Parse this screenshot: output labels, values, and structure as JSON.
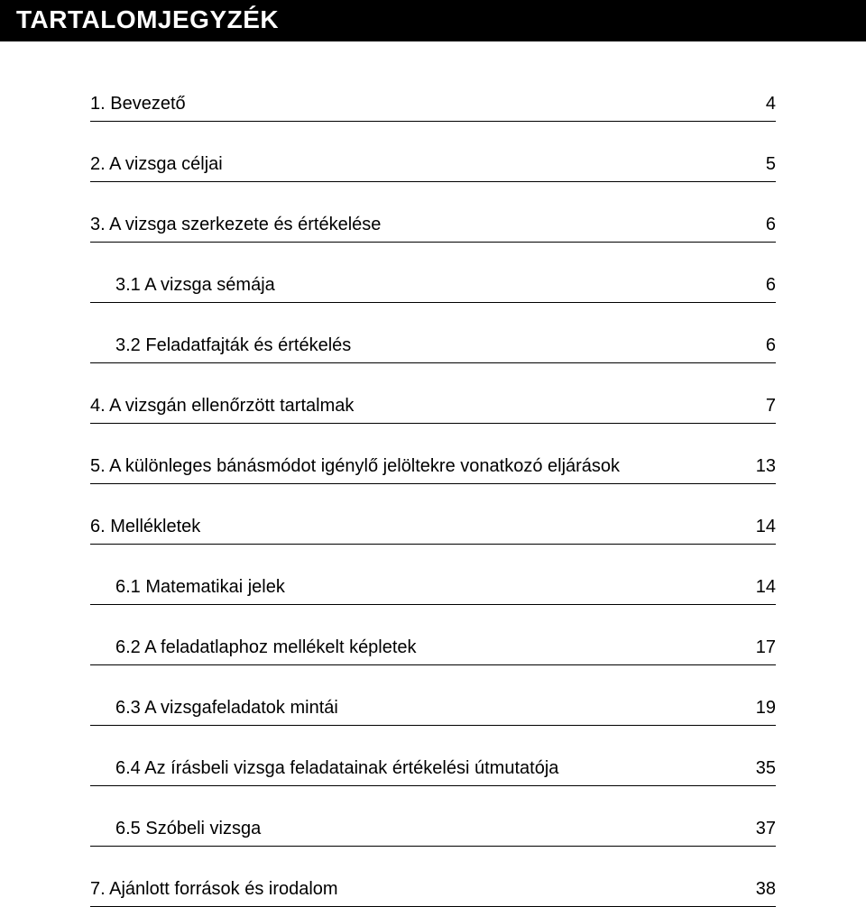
{
  "header": {
    "title": "TARTALOMJEGYZÉK"
  },
  "toc": {
    "entries": [
      {
        "label": "1.  Bevezető",
        "page": "4",
        "sub": false
      },
      {
        "label": "2.  A vizsga céljai",
        "page": "5",
        "sub": false
      },
      {
        "label": "3.  A vizsga szerkezete és értékelése",
        "page": "6",
        "sub": false
      },
      {
        "label": "3.1  A vizsga sémája",
        "page": "6",
        "sub": true
      },
      {
        "label": "3.2  Feladatfajták és értékelés",
        "page": "6",
        "sub": true
      },
      {
        "label": "4.  A vizsgán ellenőrzött tartalmak",
        "page": "7",
        "sub": false
      },
      {
        "label": "5.  A különleges bánásmódot igénylő jelöltekre vonatkozó eljárások",
        "page": "13",
        "sub": false
      },
      {
        "label": "6.  Mellékletek",
        "page": "14",
        "sub": false
      },
      {
        "label": "6.1  Matematikai jelek",
        "page": "14",
        "sub": true
      },
      {
        "label": "6.2  A feladatlaphoz mellékelt képletek",
        "page": "17",
        "sub": true
      },
      {
        "label": "6.3  A vizsgafeladatok mintái",
        "page": "19",
        "sub": true
      },
      {
        "label": "6.4  Az írásbeli vizsga feladatainak értékelési útmutatója",
        "page": "35",
        "sub": true
      },
      {
        "label": "6.5  Szóbeli vizsga",
        "page": "37",
        "sub": true
      },
      {
        "label": "7.  Ajánlott források és irodalom",
        "page": "38",
        "sub": false
      }
    ]
  },
  "colors": {
    "header_bg": "#000000",
    "header_text": "#ffffff",
    "body_text": "#000000",
    "rule": "#000000",
    "page_bg": "#ffffff"
  },
  "typography": {
    "header_fontsize_pt": 21,
    "body_fontsize_pt": 15,
    "header_weight": "700",
    "body_weight": "400"
  }
}
